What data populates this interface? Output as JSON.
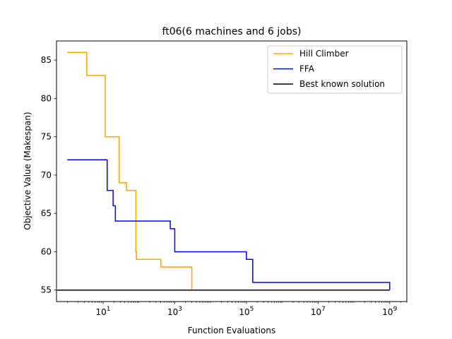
{
  "chart_data": {
    "type": "line",
    "title": "ft06(6 machines and 6 jobs)",
    "xlabel": "Function Evaluations",
    "ylabel": "Objective Value (Makespan)",
    "xscale": "log",
    "xlim": [
      0.5,
      3000000000
    ],
    "ylim": [
      53.5,
      87.5
    ],
    "xticks": [
      {
        "value": 10,
        "base": "10",
        "exp": "1"
      },
      {
        "value": 1000,
        "base": "10",
        "exp": "3"
      },
      {
        "value": 100000,
        "base": "10",
        "exp": "5"
      },
      {
        "value": 10000000,
        "base": "10",
        "exp": "7"
      },
      {
        "value": 1000000000,
        "base": "10",
        "exp": "9"
      }
    ],
    "yticks": [
      55,
      60,
      65,
      70,
      75,
      80,
      85
    ],
    "grid": false,
    "legend_position": "top-right",
    "series": [
      {
        "name": "Hill Climber",
        "color": "#ffa500",
        "step": true,
        "x": [
          1,
          3,
          3.5,
          11,
          11.5,
          25,
          28,
          40,
          45,
          80,
          82,
          85,
          400,
          410,
          2000,
          3000,
          1000000000
        ],
        "y": [
          86,
          86,
          83,
          83,
          75,
          75,
          69,
          69,
          68,
          68,
          60,
          59,
          59,
          58,
          58,
          55,
          55
        ]
      },
      {
        "name": "FFA",
        "color": "#0000ff",
        "step": true,
        "x": [
          1,
          12,
          13,
          17,
          19,
          22,
          700,
          750,
          1000,
          100000,
          150000,
          1000000000
        ],
        "y": [
          72,
          72,
          68,
          68,
          66,
          64,
          64,
          63,
          60,
          59,
          56,
          55
        ]
      },
      {
        "name": "Best known solution",
        "color": "#000000",
        "step": false,
        "x": [
          0.5,
          1000000000
        ],
        "y": [
          55,
          55
        ]
      }
    ]
  }
}
